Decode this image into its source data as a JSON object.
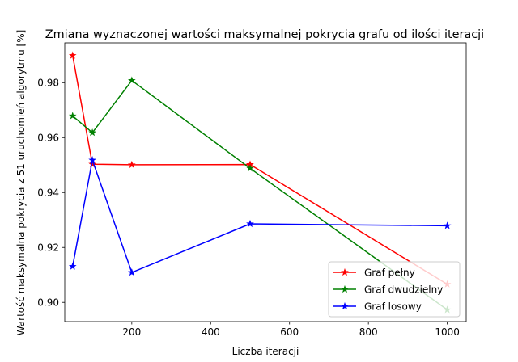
{
  "chart_data": {
    "type": "line",
    "title": "Zmiana wyznaczonej wartości maksymalnej pokrycia grafu od ilości iteracji",
    "xlabel": "Liczba iteracji",
    "ylabel": "Wartość maksymalna pokrycia z 51 uruchomień algorytmu [%]",
    "xlim": [
      30,
      1048
    ],
    "ylim": [
      0.893,
      0.9945
    ],
    "xticks": [
      200,
      400,
      600,
      800,
      1000
    ],
    "yticks": [
      0.9,
      0.92,
      0.94,
      0.96,
      0.98
    ],
    "grid": false,
    "legend_position": "lower-right",
    "x": [
      50,
      100,
      200,
      500,
      1000
    ],
    "series": [
      {
        "name": "Graf pełny",
        "color": "#ff0000",
        "marker": "star",
        "values": [
          0.9899,
          0.9503,
          0.9501,
          0.9502,
          0.9066
        ]
      },
      {
        "name": "Graf dwudzielny",
        "color": "#008000",
        "marker": "star",
        "values": [
          0.9679,
          0.9618,
          0.9808,
          0.9488,
          0.8973
        ]
      },
      {
        "name": "Graf losowy",
        "color": "#0000ff",
        "marker": "star",
        "values": [
          0.9131,
          0.9518,
          0.9109,
          0.9286,
          0.9279
        ]
      }
    ]
  }
}
